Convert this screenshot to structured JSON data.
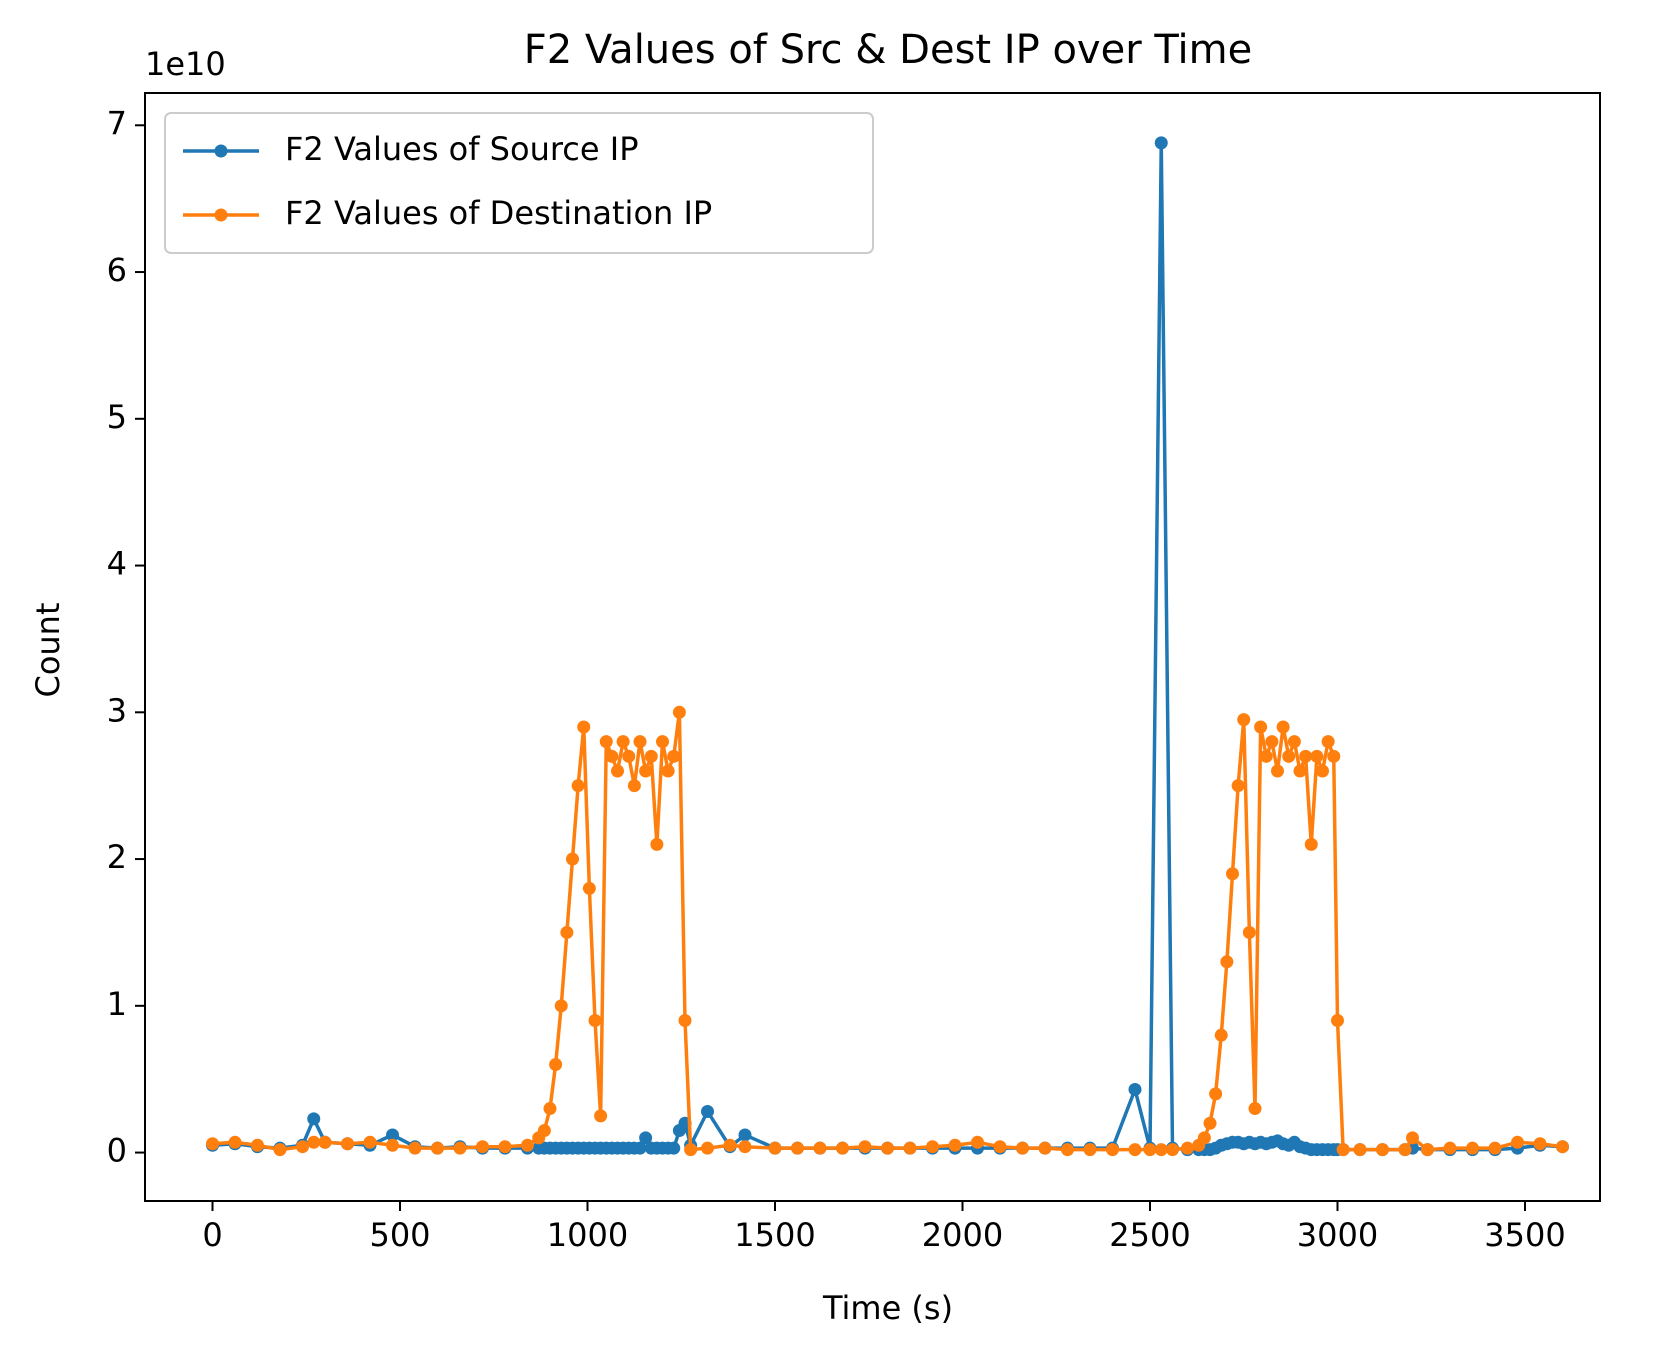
{
  "chart_data": {
    "type": "line",
    "title": "F2 Values of Src & Dest IP over Time",
    "xlabel": "Time (s)",
    "ylabel": "Count",
    "y_offset_label": "1e10",
    "x": [
      0,
      60,
      120,
      180,
      240,
      270,
      300,
      360,
      420,
      480,
      540,
      600,
      660,
      720,
      780,
      840,
      870,
      885,
      900,
      915,
      930,
      945,
      960,
      975,
      990,
      1005,
      1020,
      1035,
      1050,
      1065,
      1080,
      1095,
      1110,
      1125,
      1140,
      1155,
      1170,
      1185,
      1200,
      1215,
      1230,
      1245,
      1260,
      1275,
      1320,
      1380,
      1420,
      1500,
      1560,
      1620,
      1680,
      1740,
      1800,
      1860,
      1920,
      1980,
      2040,
      2100,
      2160,
      2220,
      2280,
      2340,
      2400,
      2460,
      2500,
      2530,
      2560,
      2600,
      2630,
      2645,
      2660,
      2675,
      2690,
      2705,
      2720,
      2735,
      2750,
      2765,
      2780,
      2795,
      2810,
      2825,
      2840,
      2855,
      2870,
      2885,
      2900,
      2915,
      2930,
      2945,
      2960,
      2975,
      2990,
      3000,
      3015,
      3060,
      3120,
      3180,
      3200,
      3240,
      3300,
      3360,
      3420,
      3480,
      3540,
      3600
    ],
    "series": [
      {
        "name": "F2 Values of Source IP",
        "color": "#1f77b4",
        "values": [
          0.05,
          0.06,
          0.04,
          0.03,
          0.05,
          0.23,
          0.07,
          0.06,
          0.05,
          0.12,
          0.04,
          0.03,
          0.04,
          0.03,
          0.03,
          0.03,
          0.03,
          0.03,
          0.03,
          0.03,
          0.03,
          0.03,
          0.03,
          0.03,
          0.03,
          0.03,
          0.03,
          0.03,
          0.03,
          0.03,
          0.03,
          0.03,
          0.03,
          0.03,
          0.03,
          0.1,
          0.03,
          0.03,
          0.03,
          0.03,
          0.03,
          0.15,
          0.2,
          0.05,
          0.28,
          0.04,
          0.12,
          0.03,
          0.03,
          0.03,
          0.03,
          0.03,
          0.03,
          0.03,
          0.03,
          0.03,
          0.03,
          0.03,
          0.03,
          0.03,
          0.03,
          0.03,
          0.03,
          0.43,
          0.03,
          6.88,
          0.03,
          0.02,
          0.02,
          0.02,
          0.02,
          0.03,
          0.05,
          0.06,
          0.07,
          0.07,
          0.06,
          0.07,
          0.06,
          0.07,
          0.06,
          0.07,
          0.08,
          0.06,
          0.05,
          0.07,
          0.04,
          0.03,
          0.02,
          0.02,
          0.02,
          0.02,
          0.02,
          0.02,
          0.02,
          0.02,
          0.02,
          0.02,
          0.03,
          0.02,
          0.02,
          0.02,
          0.02,
          0.03,
          0.05,
          0.04
        ]
      },
      {
        "name": "F2 Values of Destination IP",
        "color": "#ff7f0e",
        "values": [
          0.06,
          0.07,
          0.05,
          0.02,
          0.04,
          0.07,
          0.07,
          0.06,
          0.07,
          0.05,
          0.03,
          0.03,
          0.03,
          0.04,
          0.04,
          0.05,
          0.1,
          0.15,
          0.3,
          0.6,
          1.0,
          1.5,
          2.0,
          2.5,
          2.9,
          1.8,
          0.9,
          0.25,
          2.8,
          2.7,
          2.6,
          2.8,
          2.7,
          2.5,
          2.8,
          2.6,
          2.7,
          2.1,
          2.8,
          2.6,
          2.7,
          3.0,
          0.9,
          0.02,
          0.03,
          0.05,
          0.04,
          0.03,
          0.03,
          0.03,
          0.03,
          0.04,
          0.03,
          0.03,
          0.04,
          0.05,
          0.07,
          0.04,
          0.03,
          0.03,
          0.02,
          0.02,
          0.02,
          0.02,
          0.02,
          0.02,
          0.02,
          0.03,
          0.05,
          0.1,
          0.2,
          0.4,
          0.8,
          1.3,
          1.9,
          2.5,
          2.95,
          1.5,
          0.3,
          2.9,
          2.7,
          2.8,
          2.6,
          2.9,
          2.7,
          2.8,
          2.6,
          2.7,
          2.1,
          2.7,
          2.6,
          2.8,
          2.7,
          0.9,
          0.02,
          0.02,
          0.02,
          0.02,
          0.1,
          0.02,
          0.03,
          0.03,
          0.03,
          0.07,
          0.06,
          0.04
        ]
      }
    ],
    "xlim": [
      -180,
      3700
    ],
    "xticks": [
      0,
      500,
      1000,
      1500,
      2000,
      2500,
      3000,
      3500
    ],
    "ylim": [
      -0.33,
      7.22
    ],
    "yticks": [
      0,
      1,
      2,
      3,
      4,
      5,
      6,
      7
    ],
    "grid": false,
    "legend": "upper-left"
  }
}
